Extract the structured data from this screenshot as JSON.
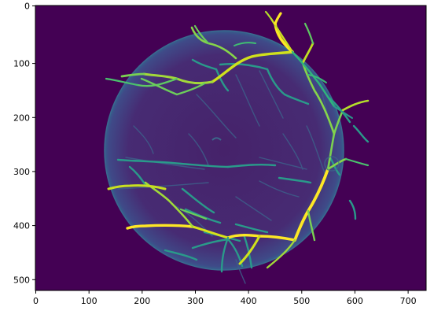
{
  "image": {
    "type": "heatmap",
    "colormap": "viridis",
    "background_color": "#440154",
    "vessel_color_low": "#3b528b",
    "vessel_color_mid": "#21918c",
    "vessel_color_high": "#fde725",
    "x_ticks": [
      "0",
      "100",
      "200",
      "300",
      "400",
      "500",
      "600",
      "700"
    ],
    "y_ticks": [
      "0",
      "100",
      "200",
      "300",
      "400",
      "500"
    ],
    "xlim": [
      0,
      735
    ],
    "ylim": [
      527,
      0
    ]
  }
}
